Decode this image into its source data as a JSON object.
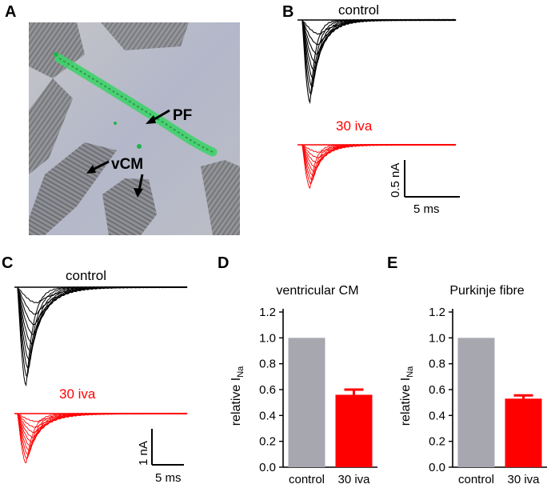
{
  "panels": {
    "A": {
      "letter": "A",
      "labels": {
        "pf": "PF",
        "vcm": "vCM"
      },
      "colors": {
        "fibre_green": "#3fd26a",
        "background": "#b7b9c8"
      }
    },
    "B": {
      "letter": "B",
      "trace_labels": {
        "control": "control",
        "drug": "30 iva"
      },
      "scale_bar": {
        "current": "0.5 nA",
        "time": "5 ms"
      },
      "colors": {
        "control": "#000000",
        "drug": "#ff0000"
      }
    },
    "C": {
      "letter": "C",
      "trace_labels": {
        "control": "control",
        "drug": "30 iva"
      },
      "scale_bar": {
        "current": "1 nA",
        "time": "5 ms"
      },
      "colors": {
        "control": "#000000",
        "drug": "#ff0000"
      }
    },
    "D": {
      "letter": "D"
    },
    "E": {
      "letter": "E"
    }
  },
  "chart_data": [
    {
      "panel": "D",
      "type": "bar",
      "title": "ventricular CM",
      "ylabel": "relative I_Na",
      "ylabel_main": "relative I",
      "ylabel_sub": "Na",
      "categories": [
        "control",
        "30 iva"
      ],
      "values": [
        1.0,
        0.56
      ],
      "errors": [
        0,
        0.04
      ],
      "colors": [
        "#a7a7af",
        "#ff0000"
      ],
      "ylim": [
        0.0,
        1.2
      ],
      "yticks": [
        "0.0",
        "0.2",
        "0.4",
        "0.6",
        "0.8",
        "1.0",
        "1.2"
      ],
      "grid": false
    },
    {
      "panel": "E",
      "type": "bar",
      "title": "Purkinje fibre",
      "ylabel": "relative I_Na",
      "ylabel_main": "relative I",
      "ylabel_sub": "Na",
      "categories": [
        "control",
        "30 iva"
      ],
      "values": [
        1.0,
        0.53
      ],
      "errors": [
        0,
        0.025
      ],
      "colors": [
        "#a7a7af",
        "#ff0000"
      ],
      "ylim": [
        0.0,
        1.2
      ],
      "yticks": [
        "0.0",
        "0.2",
        "0.4",
        "0.6",
        "0.8",
        "1.0",
        "1.2"
      ],
      "grid": false
    }
  ]
}
